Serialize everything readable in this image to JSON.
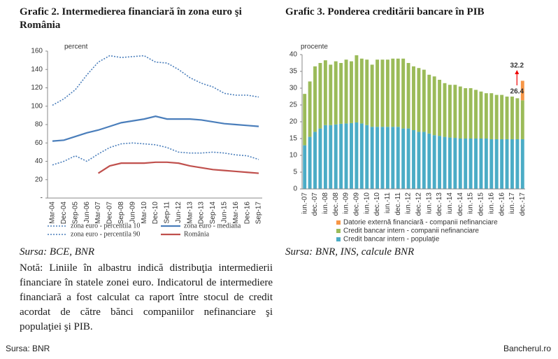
{
  "chart_data": [
    {
      "type": "line",
      "title": "Grafic 2. Intermedierea financiară în zona euro şi România",
      "y_label": "percent",
      "categories": [
        "Mar-04",
        "Dec-04",
        "Sep-05",
        "Jun-06",
        "Mar-07",
        "Dec-07",
        "Sep-08",
        "Jun-09",
        "Mar-10",
        "Dec-10",
        "Sep-11",
        "Jun-12",
        "Mar-13",
        "Dec-13",
        "Sep-14",
        "Jun-15",
        "Mar-16",
        "Dec-16",
        "Sep-17"
      ],
      "series": [
        {
          "name": "zona euro - percentila 10",
          "color": "#4a7ebb",
          "dash": "dotted",
          "values": [
            36,
            40,
            46,
            40,
            48,
            55,
            59,
            60,
            59,
            58,
            55,
            50,
            49,
            49,
            50,
            49,
            47,
            46,
            42
          ]
        },
        {
          "name": "zona euro - mediana",
          "color": "#4a7ebb",
          "dash": "solid",
          "values": [
            62,
            63,
            67,
            71,
            74,
            78,
            82,
            84,
            86,
            89,
            86,
            86,
            86,
            85,
            83,
            81,
            80,
            79,
            78
          ]
        },
        {
          "name": "zona euro - percentila 90",
          "color": "#4a7ebb",
          "dash": "dotted",
          "values": [
            101,
            108,
            118,
            134,
            148,
            155,
            153,
            154,
            155,
            148,
            147,
            140,
            131,
            125,
            121,
            114,
            112,
            112,
            110
          ]
        },
        {
          "name": "România",
          "color": "#c0504d",
          "dash": "solid",
          "values": [
            null,
            null,
            null,
            null,
            27,
            35,
            38,
            38,
            38,
            39,
            39,
            38,
            35,
            33,
            31,
            30,
            29,
            28,
            27
          ]
        }
      ],
      "ylim": [
        0,
        160
      ],
      "yticks": [
        {
          "value": 0,
          "label": "-"
        },
        20,
        40,
        60,
        80,
        100,
        120,
        140,
        160
      ],
      "source": "Sursa: BCE, BNR",
      "note": "Notă: Liniile în albastru indică distribuţia intermedierii financiare în statele zonei euro. Indicatorul de intermediere financiară a fost calculat ca raport între stocul de credit acordat de către bănci companiilor nefinanciare şi populaţiei şi PIB."
    },
    {
      "type": "bar",
      "stacked": true,
      "title": "Grafic 3. Ponderea creditării bancare în PIB",
      "y_label": "procente",
      "categories": [
        "iun.-07",
        null,
        "dec.-07",
        null,
        "iun.-08",
        null,
        "dec.-08",
        null,
        "iun.-09",
        null,
        "dec.-09",
        null,
        "iun.-10",
        null,
        "dec.-10",
        null,
        "iun.-11",
        null,
        "dec.-11",
        null,
        "iun.-12",
        null,
        "dec.-12",
        null,
        "iun.-13",
        null,
        "dec.-13",
        null,
        "iun.-14",
        null,
        "dec.-14",
        null,
        "iun.-15",
        null,
        "dec.-15",
        null,
        "iun.-16",
        null,
        "dec.-16",
        null,
        "iun.-17",
        null,
        "dec.-17"
      ],
      "series": [
        {
          "name": "Credit bancar intern - populaţie",
          "color": "#4bacc6",
          "values": [
            13,
            15.5,
            17,
            18,
            19,
            19,
            19.2,
            19.4,
            19.5,
            19.6,
            19.8,
            19.5,
            19,
            18.5,
            18.5,
            18.5,
            18.5,
            18.5,
            18.5,
            18,
            18,
            17.5,
            17,
            17,
            16.5,
            16,
            15.8,
            15.5,
            15.3,
            15.2,
            15,
            15,
            15,
            15,
            15,
            15,
            14.8,
            14.8,
            14.8,
            14.8,
            14.8,
            14.8,
            14.8
          ]
        },
        {
          "name": "Credit bancar intern - companii nefinanciare",
          "color": "#9bbb59",
          "values": [
            15.3,
            16.5,
            19.5,
            19.5,
            19.3,
            18,
            18.8,
            18.1,
            19,
            18.4,
            20,
            19.3,
            19.5,
            18.5,
            20,
            20,
            20,
            20.3,
            20.3,
            20.8,
            19.5,
            19,
            19,
            18.5,
            17.5,
            17.5,
            16.7,
            16,
            15.7,
            15.8,
            15.5,
            15,
            15,
            14.5,
            14,
            13.5,
            13.7,
            13.2,
            13.2,
            12.7,
            12.7,
            12.2,
            11.6
          ]
        },
        {
          "name": "Datorie externă financiară - companii nefinanciare",
          "color": "#f79646",
          "values": [
            null,
            null,
            null,
            null,
            null,
            null,
            null,
            null,
            null,
            null,
            null,
            null,
            null,
            null,
            null,
            null,
            null,
            null,
            null,
            null,
            null,
            null,
            null,
            null,
            null,
            null,
            null,
            null,
            null,
            null,
            null,
            null,
            null,
            null,
            null,
            null,
            null,
            null,
            null,
            null,
            null,
            null,
            5.8
          ]
        }
      ],
      "annotations": [
        "32.2",
        "26.4"
      ],
      "ylim": [
        0,
        40
      ],
      "yticks": [
        0,
        5,
        10,
        15,
        20,
        25,
        30,
        35,
        40
      ],
      "source": "Sursa: BNR, INS, calcule BNR"
    }
  ],
  "footer": {
    "source": "Sursa: BNR",
    "brand": "Bancherul.ro"
  }
}
